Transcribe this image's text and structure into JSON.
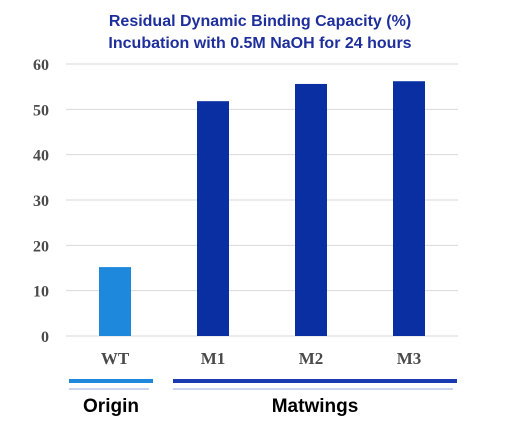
{
  "chart_data": {
    "type": "bar",
    "title": "Residual Dynamic Binding Capacity  (%)",
    "subtitle": "Incubation with 0.5M NaOH for 24 hours",
    "categories": [
      "WT",
      "M1",
      "M2",
      "M3"
    ],
    "values": [
      15.2,
      51.8,
      55.6,
      56.2
    ],
    "bar_colors": [
      "#1e88dd",
      "#0a2fa3",
      "#0a2fa3",
      "#0a2fa3"
    ],
    "ylim": [
      0,
      60
    ],
    "yticks": [
      0,
      10,
      20,
      30,
      40,
      50,
      60
    ],
    "xlabel": "",
    "ylabel": "",
    "grid": true,
    "legend": "none",
    "groups": [
      {
        "label": "Origin",
        "categories": [
          "WT"
        ],
        "color": "#1e88dd"
      },
      {
        "label": "Matwings",
        "categories": [
          "M1",
          "M2",
          "M3"
        ],
        "color": "#1a3bb0"
      }
    ]
  },
  "colors": {
    "title": "#1e2f9c",
    "tick_text": "#4a4a4a",
    "grid": "#d9d9d9"
  }
}
